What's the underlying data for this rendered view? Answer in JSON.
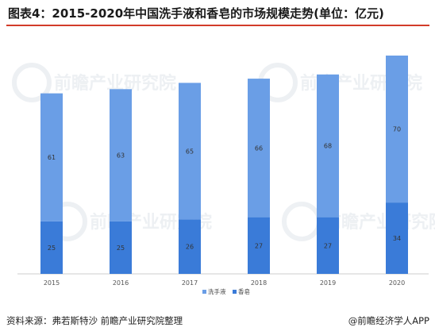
{
  "title": "图表4：2015-2020年中国洗手液和香皂的市场规模走势(单位：亿元)",
  "footer": {
    "source": "资料来源：弗若斯特沙 前瞻产业研究院整理",
    "brand": "@前瞻经济学人APP"
  },
  "watermark": {
    "text": "前瞻产业研究院"
  },
  "colors": {
    "series1": "#6a9ee6",
    "series2": "#3a7bd8",
    "axis": "#cccccc",
    "label": "#333333",
    "title_rule": "#d23c2a"
  },
  "chart_data": {
    "type": "bar",
    "stacked": true,
    "categories": [
      "2015",
      "2016",
      "2017",
      "2018",
      "2019",
      "2020"
    ],
    "series": [
      {
        "name": "香皂",
        "values": [
          25,
          25,
          26,
          27,
          27,
          34
        ]
      },
      {
        "name": "洗手液",
        "values": [
          61,
          63,
          65,
          66,
          68,
          70
        ]
      }
    ],
    "legend": [
      "洗手液",
      "香皂"
    ],
    "legend_position": "bottom",
    "grid": false
  }
}
